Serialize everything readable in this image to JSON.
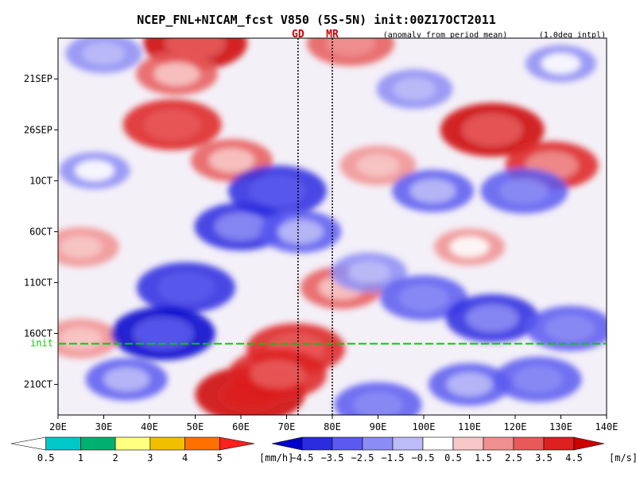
{
  "chart_data": {
    "type": "heatmap",
    "title": "NCEP_FNL+NICAM_fcst V850 (5S-5N) init:00Z17OCT2011",
    "annotation_right": "(anomaly from period mean)",
    "annotation_interp": "(1.0deg intpl)",
    "x_axis": {
      "ticks": [
        "20E",
        "30E",
        "40E",
        "50E",
        "60E",
        "70E",
        "80E",
        "90E",
        "100E",
        "110E",
        "120E",
        "130E",
        "140E"
      ],
      "xlim": [
        20,
        140
      ]
    },
    "y_axis": {
      "ticks": [
        "21SEP",
        "26SEP",
        "1OCT",
        "6OCT",
        "11OCT",
        "16OCT",
        "21OCT"
      ],
      "tick_days": [
        21,
        26,
        31,
        36,
        41,
        46,
        51
      ],
      "range_days": [
        17,
        54
      ]
    },
    "init_marker": {
      "label": "init",
      "day": 47,
      "color": "#00cc00"
    },
    "vertical_markers": [
      {
        "label": "GD",
        "lon": 72.5,
        "color": "#cc0000"
      },
      {
        "label": "MR",
        "lon": 80,
        "color": "#cc0000"
      }
    ],
    "v850_colorbar": {
      "unit": "[m/s]",
      "labels": [
        "−4.5",
        "−3.5",
        "−2.5",
        "−1.5",
        "−0.5",
        "0.5",
        "1.5",
        "2.5",
        "3.5",
        "4.5"
      ],
      "colors": [
        "#0000cc",
        "#2b2be0",
        "#5a5af0",
        "#8c8cf5",
        "#bcbcf8",
        "#ffffff",
        "#f8c8c8",
        "#f09090",
        "#e85a5a",
        "#dd2020",
        "#cc0000"
      ]
    },
    "precip_colorbar": {
      "unit": "[mm/h]",
      "labels": [
        "0.5",
        "1",
        "2",
        "3",
        "4",
        "5"
      ],
      "colors": [
        "#ffffff",
        "#00c8c8",
        "#00b070",
        "#ffff80",
        "#f0c000",
        "#ff7000",
        "#ff2020"
      ]
    },
    "anomaly_blobs": [
      {
        "lon": 50,
        "day": 17.5,
        "value": 4.5
      },
      {
        "lon": 46,
        "day": 20.5,
        "value": 2.5
      },
      {
        "lon": 45,
        "day": 25.5,
        "value": 4.0
      },
      {
        "lon": 84,
        "day": 17.5,
        "value": 3.0
      },
      {
        "lon": 115,
        "day": 26.0,
        "value": 4.5
      },
      {
        "lon": 128,
        "day": 29.5,
        "value": 3.5
      },
      {
        "lon": 58,
        "day": 29.0,
        "value": 2.5
      },
      {
        "lon": 90,
        "day": 29.5,
        "value": 2.0
      },
      {
        "lon": 25,
        "day": 37.5,
        "value": 2.0
      },
      {
        "lon": 82,
        "day": 41.5,
        "value": 2.5
      },
      {
        "lon": 110,
        "day": 37.5,
        "value": 1.5
      },
      {
        "lon": 25,
        "day": 46.5,
        "value": 2.0
      },
      {
        "lon": 72,
        "day": 47.5,
        "value": 4.0
      },
      {
        "lon": 62,
        "day": 52.0,
        "value": 5.0
      },
      {
        "lon": 68,
        "day": 50.0,
        "value": 4.0
      },
      {
        "lon": 68,
        "day": 32.0,
        "value": -4.0
      },
      {
        "lon": 60,
        "day": 35.5,
        "value": -3.5
      },
      {
        "lon": 48,
        "day": 41.5,
        "value": -4.0
      },
      {
        "lon": 43,
        "day": 46.0,
        "value": -4.5
      },
      {
        "lon": 73,
        "day": 36.0,
        "value": -2.5
      },
      {
        "lon": 88,
        "day": 40.0,
        "value": -2.0
      },
      {
        "lon": 100,
        "day": 42.5,
        "value": -3.0
      },
      {
        "lon": 115,
        "day": 44.5,
        "value": -3.5
      },
      {
        "lon": 132,
        "day": 45.5,
        "value": -3.0
      },
      {
        "lon": 102,
        "day": 32.0,
        "value": -2.5
      },
      {
        "lon": 122,
        "day": 32.0,
        "value": -3.0
      },
      {
        "lon": 110,
        "day": 51.0,
        "value": -2.5
      },
      {
        "lon": 90,
        "day": 53.0,
        "value": -3.0
      },
      {
        "lon": 125,
        "day": 50.5,
        "value": -3.0
      },
      {
        "lon": 98,
        "day": 22.0,
        "value": -2.0
      },
      {
        "lon": 30,
        "day": 18.5,
        "value": -2.0
      },
      {
        "lon": 28,
        "day": 30.0,
        "value": -1.5
      },
      {
        "lon": 35,
        "day": 50.5,
        "value": -2.5
      },
      {
        "lon": 130,
        "day": 19.5,
        "value": -1.5
      }
    ]
  }
}
